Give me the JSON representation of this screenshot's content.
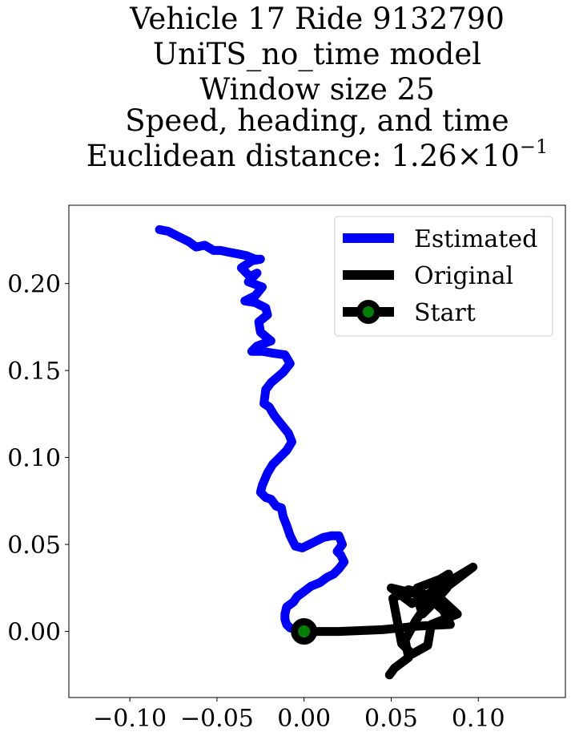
{
  "chart_data": {
    "type": "line",
    "title_lines": [
      "Vehicle 17 Ride 9132790",
      "UniTS_no_time model",
      "Window size 25",
      "Speed, heading, and time"
    ],
    "title_metric_prefix": "Euclidean distance: ",
    "title_metric_mantissa": "1.26",
    "title_metric_times": "×",
    "title_metric_base": "10",
    "title_metric_exponent": "−1",
    "xlim": [
      -0.135,
      0.15
    ],
    "ylim": [
      -0.038,
      0.245
    ],
    "x_ticks": [
      -0.1,
      -0.05,
      0.0,
      0.05,
      0.1
    ],
    "x_tick_labels": [
      "−0.10",
      "−0.05",
      "0.00",
      "0.05",
      "0.10"
    ],
    "y_ticks": [
      0.0,
      0.05,
      0.1,
      0.15,
      0.2
    ],
    "y_tick_labels": [
      "0.00",
      "0.05",
      "0.10",
      "0.15",
      "0.20"
    ],
    "grid": false,
    "legend_position": "top-right",
    "series": [
      {
        "name": "Estimated",
        "color": "#0000ff",
        "x": [
          -0.083,
          -0.078,
          -0.072,
          -0.066,
          -0.062,
          -0.057,
          -0.052,
          -0.048,
          -0.043,
          -0.038,
          -0.033,
          -0.028,
          -0.025,
          -0.03,
          -0.036,
          -0.031,
          -0.027,
          -0.032,
          -0.024,
          -0.028,
          -0.034,
          -0.028,
          -0.022,
          -0.021,
          -0.026,
          -0.025,
          -0.019,
          -0.027,
          -0.03,
          -0.024,
          -0.018,
          -0.011,
          -0.008,
          -0.012,
          -0.019,
          -0.022,
          -0.023,
          -0.02,
          -0.017,
          -0.013,
          -0.009,
          -0.007,
          -0.01,
          -0.014,
          -0.018,
          -0.021,
          -0.024,
          -0.025,
          -0.022,
          -0.019,
          -0.016,
          -0.013,
          -0.012,
          -0.01,
          -0.008,
          -0.005,
          -0.001,
          0.005,
          0.011,
          0.016,
          0.02,
          0.022,
          0.019,
          0.021,
          0.023,
          0.02,
          0.017,
          0.013,
          0.009,
          0.004,
          0.0,
          -0.004,
          -0.006,
          -0.01,
          -0.011,
          -0.011,
          -0.01,
          -0.008,
          -0.004,
          0.0
        ],
        "y": [
          0.231,
          0.23,
          0.227,
          0.224,
          0.221,
          0.222,
          0.219,
          0.219,
          0.218,
          0.217,
          0.216,
          0.214,
          0.214,
          0.213,
          0.209,
          0.204,
          0.206,
          0.201,
          0.198,
          0.193,
          0.19,
          0.189,
          0.186,
          0.182,
          0.178,
          0.172,
          0.167,
          0.164,
          0.161,
          0.161,
          0.16,
          0.159,
          0.154,
          0.149,
          0.143,
          0.139,
          0.131,
          0.129,
          0.124,
          0.119,
          0.114,
          0.109,
          0.104,
          0.1,
          0.096,
          0.091,
          0.084,
          0.08,
          0.077,
          0.076,
          0.072,
          0.071,
          0.066,
          0.061,
          0.055,
          0.049,
          0.048,
          0.051,
          0.054,
          0.055,
          0.055,
          0.05,
          0.046,
          0.044,
          0.04,
          0.036,
          0.033,
          0.031,
          0.028,
          0.026,
          0.023,
          0.02,
          0.017,
          0.014,
          0.01,
          0.007,
          0.004,
          0.002,
          0.001,
          0.0
        ]
      },
      {
        "name": "Original",
        "color": "#000000",
        "x": [
          0.0,
          0.02,
          0.045,
          0.065,
          0.084,
          0.08,
          0.071,
          0.05,
          0.062,
          0.097,
          0.072,
          0.065,
          0.078,
          0.083,
          0.082,
          0.074,
          0.068,
          0.066,
          0.067,
          0.06,
          0.051,
          0.056,
          0.062,
          0.071,
          0.073,
          0.088,
          0.075,
          0.064,
          0.058,
          0.06,
          0.052,
          0.049
        ],
        "y": [
          0.0,
          0.0,
          0.001,
          0.003,
          0.004,
          0.012,
          0.02,
          0.025,
          0.016,
          0.037,
          0.018,
          0.025,
          0.03,
          0.033,
          0.025,
          0.016,
          0.01,
          0.016,
          0.022,
          0.024,
          0.019,
          -0.007,
          -0.013,
          -0.008,
          0.004,
          0.01,
          0.022,
          0.006,
          -0.005,
          -0.015,
          -0.021,
          -0.025
        ]
      }
    ],
    "start": {
      "name": "Start",
      "x": 0.0,
      "y": 0.0,
      "marker_color": "#008000",
      "edge_color": "#000000"
    }
  }
}
